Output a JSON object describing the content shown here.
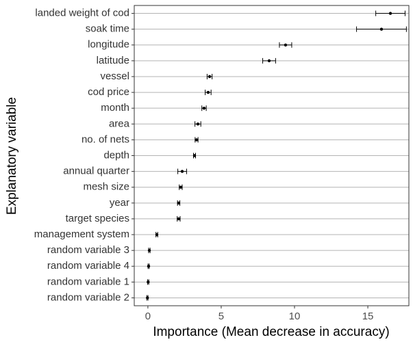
{
  "chart_data": {
    "type": "dot",
    "x_label": "Importance (Mean decrease in accuracy)",
    "y_label": "Explanatory variable",
    "categories": [
      "landed weight of cod",
      "soak time",
      "longitude",
      "latitude",
      "vessel",
      "cod price",
      "month",
      "area",
      "no. of nets",
      "depth",
      "annual quarter",
      "mesh size",
      "year",
      "target species",
      "management system",
      "random variable 3",
      "random variable 4",
      "random variable 1",
      "random variable 2"
    ],
    "values": [
      16.54,
      15.93,
      9.39,
      8.27,
      4.21,
      4.11,
      3.83,
      3.41,
      3.32,
      3.18,
      2.34,
      2.24,
      2.1,
      2.1,
      0.61,
      0.1,
      0.05,
      0.02,
      -0.03
    ],
    "errors": [
      1.0,
      1.7,
      0.42,
      0.44,
      0.17,
      0.2,
      0.15,
      0.2,
      0.1,
      0.07,
      0.3,
      0.1,
      0.08,
      0.1,
      0.06,
      0.05,
      0.04,
      0.04,
      0.04
    ],
    "color": "#000000",
    "xlim": [
      -0.93,
      17.8
    ],
    "xticks": [
      0,
      5,
      10,
      15
    ],
    "grid": true
  }
}
